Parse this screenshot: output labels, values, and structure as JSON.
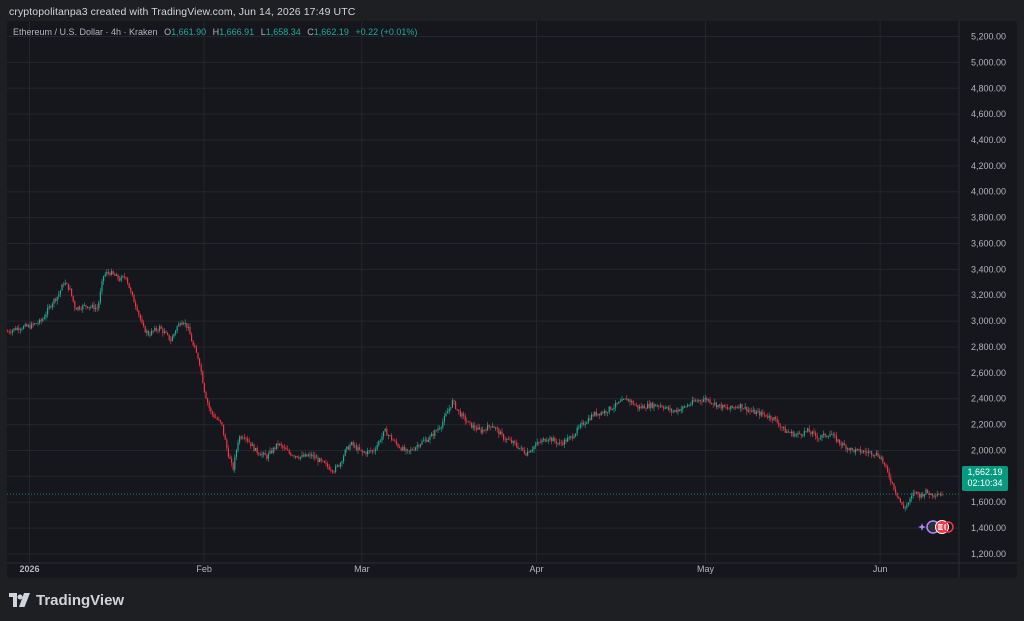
{
  "header": {
    "credit": "cryptopolitanpa3 created with TradingView.com, Jun 14, 2026 17:49 UTC"
  },
  "legend": {
    "symbol": "Ethereum / U.S. Dollar · 4h · Kraken",
    "o_label": "O",
    "o_value": "1,661.90",
    "h_label": "H",
    "h_value": "1,666.91",
    "l_label": "L",
    "l_value": "1,658.34",
    "c_label": "C",
    "c_value": "1,662.19",
    "change": "+0.22 (+0.01%)"
  },
  "price_badge": {
    "price": "1,662.19",
    "countdown": "02:10:34"
  },
  "footer": {
    "brand": "TradingView",
    "logo_icon": "tradingview-logo-icon"
  },
  "colors": {
    "up": "#22ab94",
    "down": "#f23645",
    "background": "#16171c",
    "grid": "#24262d",
    "axis_text": "#b2b5be",
    "badge": "#089981"
  },
  "chart_data": {
    "type": "line",
    "title": "Ethereum / U.S. Dollar · 4h · Kraken",
    "xlabel": "",
    "ylabel": "",
    "ylim": [
      1130,
      5320
    ],
    "yticks": [
      1200,
      1400,
      1600,
      1800,
      2000,
      2200,
      2400,
      2600,
      2800,
      3000,
      3200,
      3400,
      3600,
      3800,
      4000,
      4200,
      4400,
      4600,
      4800,
      5000,
      5200
    ],
    "ytick_labels": [
      "1,200.00",
      "1,400.00",
      "1,600.00",
      "1,800.00",
      "2,000.00",
      "2,200.00",
      "2,400.00",
      "2,600.00",
      "2,800.00",
      "3,000.00",
      "3,200.00",
      "3,400.00",
      "3,600.00",
      "3,800.00",
      "4,000.00",
      "4,200.00",
      "4,400.00",
      "4,600.00",
      "4,800.00",
      "5,000.00",
      "5,200.00"
    ],
    "xlim": [
      "2025-12-28",
      "2026-06-15"
    ],
    "xticks": [
      {
        "date": "2026-01-01",
        "label": "2026",
        "bold": true
      },
      {
        "date": "2026-02-01",
        "label": "Feb"
      },
      {
        "date": "2026-03-01",
        "label": "Mar"
      },
      {
        "date": "2026-04-01",
        "label": "Apr"
      },
      {
        "date": "2026-05-01",
        "label": "May"
      },
      {
        "date": "2026-06-01",
        "label": "Jun"
      }
    ],
    "last_price": 1662.19,
    "series": [
      {
        "points": [
          [
            "2025-12-28",
            2920
          ],
          [
            "2025-12-30",
            2950
          ],
          [
            "2026-01-01",
            2960
          ],
          [
            "2026-01-03",
            3000
          ],
          [
            "2026-01-05",
            3150
          ],
          [
            "2026-01-06",
            3200
          ],
          [
            "2026-01-07",
            3300
          ],
          [
            "2026-01-08",
            3250
          ],
          [
            "2026-01-09",
            3100
          ],
          [
            "2026-01-11",
            3120
          ],
          [
            "2026-01-13",
            3100
          ],
          [
            "2026-01-14",
            3350
          ],
          [
            "2026-01-15",
            3380
          ],
          [
            "2026-01-17",
            3320
          ],
          [
            "2026-01-18",
            3350
          ],
          [
            "2026-01-19",
            3200
          ],
          [
            "2026-01-20",
            3100
          ],
          [
            "2026-01-21",
            2950
          ],
          [
            "2026-01-22",
            2900
          ],
          [
            "2026-01-24",
            2950
          ],
          [
            "2026-01-26",
            2850
          ],
          [
            "2026-01-27",
            2950
          ],
          [
            "2026-01-28",
            3010
          ],
          [
            "2026-01-29",
            2950
          ],
          [
            "2026-01-30",
            2800
          ],
          [
            "2026-01-31",
            2700
          ],
          [
            "2026-02-01",
            2450
          ],
          [
            "2026-02-02",
            2300
          ],
          [
            "2026-02-03",
            2250
          ],
          [
            "2026-02-04",
            2200
          ],
          [
            "2026-02-05",
            2000
          ],
          [
            "2026-02-06",
            1850
          ],
          [
            "2026-02-07",
            2100
          ],
          [
            "2026-02-08",
            2120
          ],
          [
            "2026-02-10",
            2000
          ],
          [
            "2026-02-12",
            1950
          ],
          [
            "2026-02-14",
            2050
          ],
          [
            "2026-02-16",
            1980
          ],
          [
            "2026-02-18",
            1950
          ],
          [
            "2026-02-20",
            1960
          ],
          [
            "2026-02-22",
            1900
          ],
          [
            "2026-02-23",
            1870
          ],
          [
            "2026-02-24",
            1850
          ],
          [
            "2026-02-25",
            1900
          ],
          [
            "2026-02-26",
            2000
          ],
          [
            "2026-02-27",
            2050
          ],
          [
            "2026-03-01",
            1980
          ],
          [
            "2026-03-03",
            2000
          ],
          [
            "2026-03-05",
            2150
          ],
          [
            "2026-03-07",
            2050
          ],
          [
            "2026-03-09",
            1980
          ],
          [
            "2026-03-11",
            2050
          ],
          [
            "2026-03-13",
            2100
          ],
          [
            "2026-03-15",
            2200
          ],
          [
            "2026-03-17",
            2380
          ],
          [
            "2026-03-18",
            2300
          ],
          [
            "2026-03-20",
            2200
          ],
          [
            "2026-03-22",
            2150
          ],
          [
            "2026-03-24",
            2200
          ],
          [
            "2026-03-26",
            2100
          ],
          [
            "2026-03-28",
            2050
          ],
          [
            "2026-03-30",
            1980
          ],
          [
            "2026-04-01",
            2050
          ],
          [
            "2026-04-03",
            2100
          ],
          [
            "2026-04-05",
            2050
          ],
          [
            "2026-04-07",
            2100
          ],
          [
            "2026-04-09",
            2200
          ],
          [
            "2026-04-11",
            2280
          ],
          [
            "2026-04-13",
            2300
          ],
          [
            "2026-04-15",
            2350
          ],
          [
            "2026-04-17",
            2400
          ],
          [
            "2026-04-19",
            2330
          ],
          [
            "2026-04-21",
            2350
          ],
          [
            "2026-04-23",
            2350
          ],
          [
            "2026-04-25",
            2300
          ],
          [
            "2026-04-27",
            2330
          ],
          [
            "2026-04-29",
            2380
          ],
          [
            "2026-05-01",
            2400
          ],
          [
            "2026-05-03",
            2350
          ],
          [
            "2026-05-05",
            2320
          ],
          [
            "2026-05-07",
            2350
          ],
          [
            "2026-05-09",
            2300
          ],
          [
            "2026-05-11",
            2280
          ],
          [
            "2026-05-13",
            2250
          ],
          [
            "2026-05-15",
            2150
          ],
          [
            "2026-05-17",
            2120
          ],
          [
            "2026-05-19",
            2150
          ],
          [
            "2026-05-21",
            2100
          ],
          [
            "2026-05-23",
            2130
          ],
          [
            "2026-05-25",
            2050
          ],
          [
            "2026-05-27",
            2000
          ],
          [
            "2026-05-29",
            1990
          ],
          [
            "2026-05-31",
            1980
          ],
          [
            "2026-06-01",
            1950
          ],
          [
            "2026-06-02",
            1850
          ],
          [
            "2026-06-03",
            1750
          ],
          [
            "2026-06-04",
            1650
          ],
          [
            "2026-06-05",
            1550
          ],
          [
            "2026-06-06",
            1600
          ],
          [
            "2026-06-07",
            1680
          ],
          [
            "2026-06-08",
            1650
          ],
          [
            "2026-06-09",
            1680
          ],
          [
            "2026-06-10",
            1660
          ],
          [
            "2026-06-11",
            1670
          ],
          [
            "2026-06-12",
            1662
          ]
        ]
      }
    ]
  }
}
